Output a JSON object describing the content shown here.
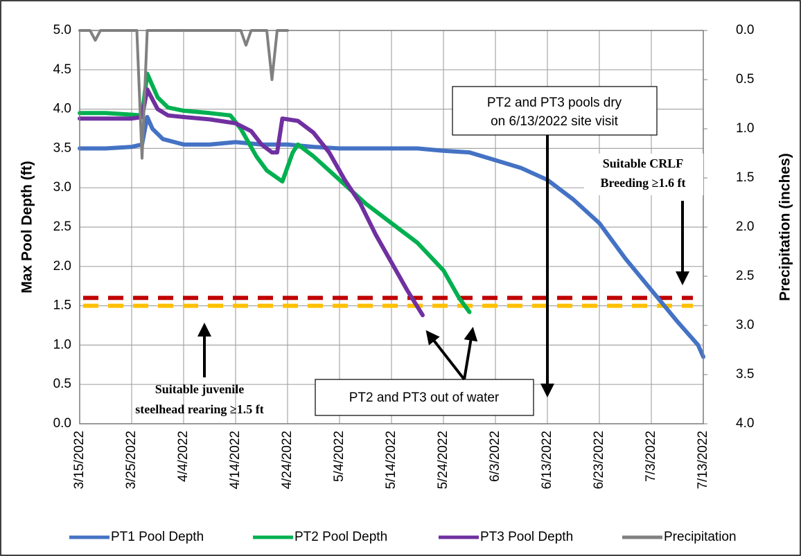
{
  "chart_data": {
    "type": "line",
    "ylabel": "Max Pool Depth (ft)",
    "y2label": "Precipitation (inches)",
    "xlim": [
      "3/15/2022",
      "7/13/2022"
    ],
    "xticks": [
      "3/15/2022",
      "3/25/2022",
      "4/4/2022",
      "4/14/2022",
      "4/24/2022",
      "5/4/2022",
      "5/14/2022",
      "5/24/2022",
      "6/3/2022",
      "6/13/2022",
      "6/23/2022",
      "7/3/2022",
      "7/13/2022"
    ],
    "ylim": [
      0,
      5
    ],
    "yticks": [
      {
        "value": 0,
        "label": "0.0"
      },
      0.5,
      {
        "value": 1,
        "label": "1.0"
      },
      1.5,
      {
        "value": 2,
        "label": "2.0"
      },
      2.5,
      {
        "value": 3,
        "label": "3.0"
      },
      3.5,
      {
        "value": 4,
        "label": "4.0"
      },
      4.5,
      {
        "value": 5,
        "label": "5.0"
      }
    ],
    "y2lim": [
      4,
      0
    ],
    "y2ticks": [
      {
        "value": 0,
        "label": "0.0"
      },
      0.5,
      {
        "value": 1,
        "label": "1.0"
      },
      1.5,
      {
        "value": 2,
        "label": "2.0"
      },
      2.5,
      {
        "value": 3,
        "label": "3.0"
      },
      3.5,
      {
        "value": 4,
        "label": "4.0"
      }
    ],
    "grid": true,
    "legend": "bottom",
    "series": [
      {
        "name": "PT1 Pool Depth",
        "color": "#4472c4",
        "x": [
          "3/15/2022",
          "3/20/2022",
          "3/25/2022",
          "3/27/2022",
          "3/28/2022",
          "3/29/2022",
          "3/31/2022",
          "4/4/2022",
          "4/9/2022",
          "4/14/2022",
          "4/19/2022",
          "4/24/2022",
          "4/29/2022",
          "5/4/2022",
          "5/9/2022",
          "5/14/2022",
          "5/19/2022",
          "5/24/2022",
          "5/29/2022",
          "6/3/2022",
          "6/8/2022",
          "6/13/2022",
          "6/18/2022",
          "6/23/2022",
          "6/28/2022",
          "7/3/2022",
          "7/8/2022",
          "7/12/2022",
          "7/13/2022"
        ],
        "values": [
          3.5,
          3.5,
          3.52,
          3.55,
          3.9,
          3.75,
          3.62,
          3.55,
          3.55,
          3.58,
          3.55,
          3.55,
          3.52,
          3.5,
          3.5,
          3.5,
          3.5,
          3.47,
          3.45,
          3.35,
          3.25,
          3.1,
          2.85,
          2.55,
          2.1,
          1.7,
          1.3,
          1.0,
          0.85
        ]
      },
      {
        "name": "PT2 Pool Depth",
        "color": "#00b050",
        "x": [
          "3/15/2022",
          "3/20/2022",
          "3/25/2022",
          "3/27/2022",
          "3/28/2022",
          "3/30/2022",
          "4/1/2022",
          "4/4/2022",
          "4/9/2022",
          "4/13/2022",
          "4/15/2022",
          "4/18/2022",
          "4/20/2022",
          "4/23/2022",
          "4/25/2022",
          "4/26/2022",
          "4/29/2022",
          "5/4/2022",
          "5/9/2022",
          "5/14/2022",
          "5/19/2022",
          "5/24/2022",
          "5/27/2022",
          "5/29/2022"
        ],
        "values": [
          3.95,
          3.95,
          3.93,
          3.92,
          4.45,
          4.15,
          4.02,
          3.98,
          3.95,
          3.92,
          3.75,
          3.4,
          3.22,
          3.08,
          3.45,
          3.55,
          3.4,
          3.1,
          2.8,
          2.55,
          2.3,
          1.95,
          1.6,
          1.42
        ]
      },
      {
        "name": "PT3 Pool Depth",
        "color": "#7030a0",
        "x": [
          "3/15/2022",
          "3/20/2022",
          "3/25/2022",
          "3/27/2022",
          "3/28/2022",
          "3/30/2022",
          "4/1/2022",
          "4/4/2022",
          "4/9/2022",
          "4/14/2022",
          "4/17/2022",
          "4/19/2022",
          "4/21/2022",
          "4/22/2022",
          "4/23/2022",
          "4/26/2022",
          "4/29/2022",
          "5/2/2022",
          "5/5/2022",
          "5/8/2022",
          "5/11/2022",
          "5/14/2022",
          "5/17/2022",
          "5/20/2022"
        ],
        "values": [
          3.88,
          3.88,
          3.88,
          3.9,
          4.25,
          4.0,
          3.92,
          3.9,
          3.87,
          3.82,
          3.72,
          3.55,
          3.45,
          3.45,
          3.88,
          3.85,
          3.7,
          3.45,
          3.1,
          2.8,
          2.4,
          2.05,
          1.7,
          1.38
        ]
      },
      {
        "name": "Precipitation",
        "color": "#808080",
        "axis": "y2",
        "x": [
          "3/15/2022",
          "3/17/2022",
          "3/18/2022",
          "3/19/2022",
          "3/26/2022",
          "3/27/2022",
          "3/28/2022",
          "4/15/2022",
          "4/16/2022",
          "4/17/2022",
          "4/20/2022",
          "4/21/2022",
          "4/22/2022",
          "4/24/2022"
        ],
        "values": [
          0,
          0,
          0.1,
          0,
          0,
          1.3,
          0,
          0,
          0.15,
          0,
          0,
          0.5,
          0,
          0
        ]
      }
    ],
    "hlines": [
      {
        "value": 1.6,
        "color": "#c00000"
      },
      {
        "value": 1.5,
        "color": "#ffc000"
      }
    ],
    "annotations": {
      "pools_dry": [
        "PT2 and PT3 pools dry",
        "on 6/13/2022 site visit"
      ],
      "crlf": [
        "Suitable CRLF",
        "Breeding  ≥1.6 ft"
      ],
      "steelhead": [
        "Suitable juvenile",
        "steelhead rearing ≥1.5 ft"
      ],
      "out_of_water": "PT2 and PT3 out of water"
    }
  }
}
